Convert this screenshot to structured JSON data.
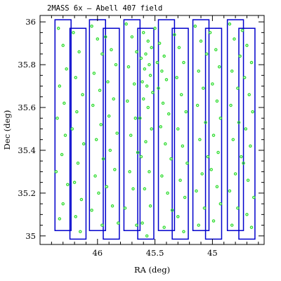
{
  "chart_data": {
    "type": "scatter",
    "title": "2MASS 6x – Abell 407 field",
    "xlabel": "RA (deg)",
    "ylabel": "Dec (deg)",
    "xlim": [
      46.5,
      44.55
    ],
    "ylim": [
      34.96,
      36.03
    ],
    "x_ticks": [
      {
        "value": 46,
        "label": "46"
      },
      {
        "value": 45.5,
        "label": "45.5"
      },
      {
        "value": 45,
        "label": "45"
      }
    ],
    "y_ticks": [
      {
        "value": 35,
        "label": "35"
      },
      {
        "value": 35.2,
        "label": "35.2"
      },
      {
        "value": 35.4,
        "label": "35.4"
      },
      {
        "value": 35.6,
        "label": "35.6"
      },
      {
        "value": 35.8,
        "label": "35.8"
      },
      {
        "value": 36,
        "label": "36"
      }
    ],
    "grid": false,
    "colors": {
      "scan_outline": "#0000cc",
      "source_marker": "#33dd33",
      "frame": "#000000"
    },
    "scan_strips": [
      {
        "ra_min": 46.37,
        "ra_max": 46.23,
        "dec_min": 35.025,
        "dec_max": 36.01
      },
      {
        "ra_min": 46.24,
        "ra_max": 46.1,
        "dec_min": 34.985,
        "dec_max": 35.97
      },
      {
        "ra_min": 46.07,
        "ra_max": 45.93,
        "dec_min": 35.025,
        "dec_max": 36.01
      },
      {
        "ra_min": 45.95,
        "ra_max": 45.81,
        "dec_min": 34.985,
        "dec_max": 35.97
      },
      {
        "ra_min": 45.77,
        "ra_max": 45.63,
        "dec_min": 35.025,
        "dec_max": 36.01
      },
      {
        "ra_min": 45.65,
        "ra_max": 45.51,
        "dec_min": 34.985,
        "dec_max": 35.97
      },
      {
        "ra_min": 45.47,
        "ra_max": 45.33,
        "dec_min": 35.025,
        "dec_max": 36.01
      },
      {
        "ra_min": 45.35,
        "ra_max": 45.21,
        "dec_min": 34.985,
        "dec_max": 35.97
      },
      {
        "ra_min": 45.17,
        "ra_max": 45.03,
        "dec_min": 35.025,
        "dec_max": 36.01
      },
      {
        "ra_min": 45.06,
        "ra_max": 44.92,
        "dec_min": 34.985,
        "dec_max": 35.97
      },
      {
        "ra_min": 44.87,
        "ra_max": 44.73,
        "dec_min": 35.025,
        "dec_max": 36.01
      },
      {
        "ra_min": 44.77,
        "ra_max": 44.63,
        "dec_min": 34.985,
        "dec_max": 35.97
      }
    ],
    "series": [
      {
        "points": [
          [
            46.34,
            35.97
          ],
          [
            46.3,
            35.89
          ],
          [
            46.27,
            35.78
          ],
          [
            46.33,
            35.7
          ],
          [
            46.29,
            35.62
          ],
          [
            46.35,
            35.55
          ],
          [
            46.28,
            35.47
          ],
          [
            46.31,
            35.38
          ],
          [
            46.36,
            35.3
          ],
          [
            46.26,
            35.24
          ],
          [
            46.3,
            35.15
          ],
          [
            46.33,
            35.08
          ],
          [
            46.21,
            35.95
          ],
          [
            46.16,
            35.86
          ],
          [
            46.19,
            35.74
          ],
          [
            46.13,
            35.66
          ],
          [
            46.18,
            35.58
          ],
          [
            46.22,
            35.5
          ],
          [
            46.12,
            35.43
          ],
          [
            46.17,
            35.34
          ],
          [
            46.2,
            35.25
          ],
          [
            46.14,
            35.17
          ],
          [
            46.19,
            35.09
          ],
          [
            46.15,
            35.02
          ],
          [
            46.05,
            35.98
          ],
          [
            46.0,
            35.92
          ],
          [
            45.96,
            35.85
          ],
          [
            46.03,
            35.76
          ],
          [
            45.98,
            35.68
          ],
          [
            46.04,
            35.61
          ],
          [
            45.97,
            35.52
          ],
          [
            46.01,
            35.45
          ],
          [
            45.95,
            35.36
          ],
          [
            46.02,
            35.28
          ],
          [
            45.99,
            35.2
          ],
          [
            46.05,
            35.12
          ],
          [
            45.96,
            35.05
          ],
          [
            45.93,
            35.93
          ],
          [
            45.88,
            35.87
          ],
          [
            45.84,
            35.8
          ],
          [
            45.91,
            35.72
          ],
          [
            45.86,
            35.64
          ],
          [
            45.9,
            35.56
          ],
          [
            45.83,
            35.48
          ],
          [
            45.89,
            35.4
          ],
          [
            45.85,
            35.31
          ],
          [
            45.92,
            35.23
          ],
          [
            45.87,
            35.14
          ],
          [
            45.82,
            35.06
          ],
          [
            45.75,
            35.99
          ],
          [
            45.7,
            35.93
          ],
          [
            45.66,
            35.86
          ],
          [
            45.73,
            35.79
          ],
          [
            45.68,
            35.71
          ],
          [
            45.74,
            35.63
          ],
          [
            45.67,
            35.55
          ],
          [
            45.71,
            35.47
          ],
          [
            45.65,
            35.39
          ],
          [
            45.72,
            35.3
          ],
          [
            45.69,
            35.22
          ],
          [
            45.76,
            35.13
          ],
          [
            45.66,
            35.05
          ],
          [
            45.6,
            35.95
          ],
          [
            45.56,
            35.91
          ],
          [
            45.53,
            35.88
          ],
          [
            45.58,
            35.85
          ],
          [
            45.62,
            35.83
          ],
          [
            45.55,
            35.8
          ],
          [
            45.59,
            35.78
          ],
          [
            45.54,
            35.75
          ],
          [
            45.61,
            35.72
          ],
          [
            45.57,
            35.7
          ],
          [
            45.52,
            35.67
          ],
          [
            45.6,
            35.64
          ],
          [
            45.56,
            35.6
          ],
          [
            45.63,
            35.55
          ],
          [
            45.53,
            35.5
          ],
          [
            45.58,
            35.44
          ],
          [
            45.62,
            35.37
          ],
          [
            45.55,
            35.3
          ],
          [
            45.59,
            35.22
          ],
          [
            45.54,
            35.14
          ],
          [
            45.61,
            35.06
          ],
          [
            45.57,
            35.0
          ],
          [
            45.5,
            35.97
          ],
          [
            45.46,
            35.9
          ],
          [
            45.42,
            35.84
          ],
          [
            45.48,
            35.81
          ],
          [
            45.44,
            35.77
          ],
          [
            45.4,
            35.73
          ],
          [
            45.47,
            35.69
          ],
          [
            45.43,
            35.62
          ],
          [
            45.38,
            35.57
          ],
          [
            45.45,
            35.51
          ],
          [
            45.41,
            35.43
          ],
          [
            45.36,
            35.36
          ],
          [
            45.44,
            35.28
          ],
          [
            45.39,
            35.2
          ],
          [
            45.35,
            35.12
          ],
          [
            45.42,
            35.04
          ],
          [
            45.33,
            35.94
          ],
          [
            45.29,
            35.88
          ],
          [
            45.25,
            35.81
          ],
          [
            45.31,
            35.74
          ],
          [
            45.27,
            35.66
          ],
          [
            45.23,
            35.58
          ],
          [
            45.3,
            35.5
          ],
          [
            45.26,
            35.42
          ],
          [
            45.22,
            35.34
          ],
          [
            45.28,
            35.26
          ],
          [
            45.24,
            35.18
          ],
          [
            45.3,
            35.09
          ],
          [
            45.25,
            35.02
          ],
          [
            45.15,
            35.98
          ],
          [
            45.1,
            35.91
          ],
          [
            45.05,
            35.85
          ],
          [
            45.12,
            35.77
          ],
          [
            45.08,
            35.69
          ],
          [
            45.13,
            35.61
          ],
          [
            45.06,
            35.53
          ],
          [
            45.11,
            35.45
          ],
          [
            45.04,
            35.37
          ],
          [
            45.09,
            35.29
          ],
          [
            45.14,
            35.21
          ],
          [
            45.07,
            35.13
          ],
          [
            45.12,
            35.05
          ],
          [
            45.02,
            35.95
          ],
          [
            44.97,
            35.87
          ],
          [
            44.94,
            35.79
          ],
          [
            45.0,
            35.71
          ],
          [
            44.96,
            35.63
          ],
          [
            44.93,
            35.55
          ],
          [
            44.99,
            35.47
          ],
          [
            44.95,
            35.39
          ],
          [
            45.01,
            35.31
          ],
          [
            44.96,
            35.23
          ],
          [
            44.93,
            35.15
          ],
          [
            44.99,
            35.07
          ],
          [
            44.85,
            35.99
          ],
          [
            44.81,
            35.92
          ],
          [
            44.76,
            35.84
          ],
          [
            44.83,
            35.77
          ],
          [
            44.78,
            35.69
          ],
          [
            44.84,
            35.61
          ],
          [
            44.77,
            35.53
          ],
          [
            44.82,
            35.45
          ],
          [
            44.75,
            35.37
          ],
          [
            44.8,
            35.29
          ],
          [
            44.85,
            35.21
          ],
          [
            44.78,
            35.13
          ],
          [
            44.83,
            35.05
          ],
          [
            44.74,
            35.96
          ],
          [
            44.7,
            35.89
          ],
          [
            44.66,
            35.81
          ],
          [
            44.72,
            35.74
          ],
          [
            44.68,
            35.66
          ],
          [
            44.65,
            35.58
          ],
          [
            44.71,
            35.5
          ],
          [
            44.67,
            35.42
          ],
          [
            44.73,
            35.34
          ],
          [
            44.69,
            35.26
          ],
          [
            44.64,
            35.18
          ],
          [
            44.7,
            35.1
          ],
          [
            44.66,
            35.04
          ]
        ]
      }
    ]
  }
}
